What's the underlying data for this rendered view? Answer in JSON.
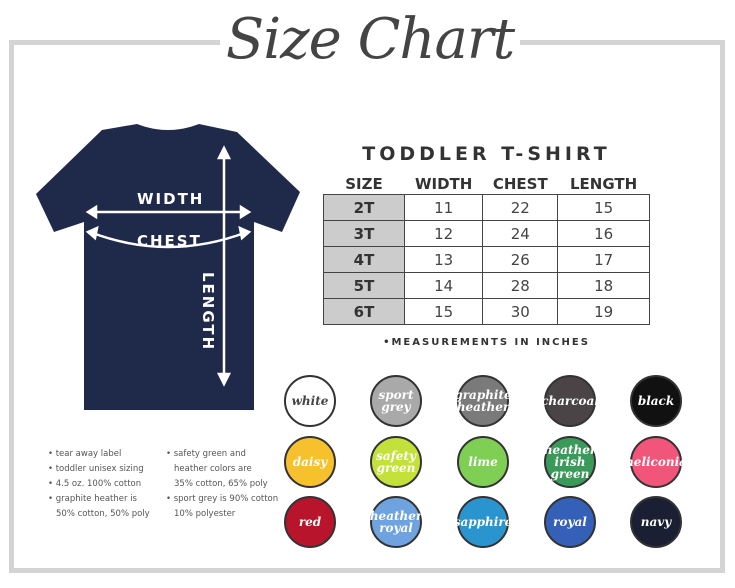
{
  "title": "Size Chart",
  "shirt": {
    "color": "#1f2a4a",
    "labels": {
      "width": "WIDTH",
      "chest": "CHEST",
      "length": "LENGTH"
    }
  },
  "table": {
    "title": "TODDLER T-SHIRT",
    "headers": [
      "SIZE",
      "WIDTH",
      "CHEST",
      "LENGTH"
    ],
    "rows": [
      [
        "2T",
        "11",
        "22",
        "15"
      ],
      [
        "3T",
        "12",
        "24",
        "16"
      ],
      [
        "4T",
        "13",
        "26",
        "17"
      ],
      [
        "5T",
        "14",
        "28",
        "18"
      ],
      [
        "6T",
        "15",
        "30",
        "19"
      ]
    ],
    "note": "•MEASUREMENTS IN INCHES"
  },
  "bullets_left": [
    "• tear away label",
    "• toddler unisex sizing",
    "• 4.5 oz. 100% cotton",
    "• graphite heather is",
    "  50% cotton, 50% poly"
  ],
  "bullets_right": [
    "• safety green and",
    "  heather colors are",
    "  35% cotton, 65% poly",
    "• sport grey is 90% cotton",
    "  10% polyester"
  ],
  "colors": [
    {
      "name": "white",
      "hex": "#ffffff",
      "text": "#444"
    },
    {
      "name": "sport grey",
      "hex": "#a9a9a9",
      "text": "#fff"
    },
    {
      "name": "graphite heather",
      "hex": "#7a7a7a",
      "text": "#fff"
    },
    {
      "name": "charcoal",
      "hex": "#4a4446",
      "text": "#fff"
    },
    {
      "name": "black",
      "hex": "#111111",
      "text": "#fff"
    },
    {
      "name": "daisy",
      "hex": "#f6c12d",
      "text": "#fff"
    },
    {
      "name": "safety green",
      "hex": "#c4e13a",
      "text": "#fff"
    },
    {
      "name": "lime",
      "hex": "#7fcf55",
      "text": "#fff"
    },
    {
      "name": "heather irish green",
      "hex": "#3a9a5a",
      "text": "#fff"
    },
    {
      "name": "heliconia",
      "hex": "#f2557a",
      "text": "#fff"
    },
    {
      "name": "red",
      "hex": "#b8142c",
      "text": "#fff"
    },
    {
      "name": "heather royal",
      "hex": "#6fa3e0",
      "text": "#fff"
    },
    {
      "name": "sapphire",
      "hex": "#2a94cf",
      "text": "#fff"
    },
    {
      "name": "royal",
      "hex": "#3560b8",
      "text": "#fff"
    },
    {
      "name": "navy",
      "hex": "#1b1f33",
      "text": "#fff"
    }
  ]
}
